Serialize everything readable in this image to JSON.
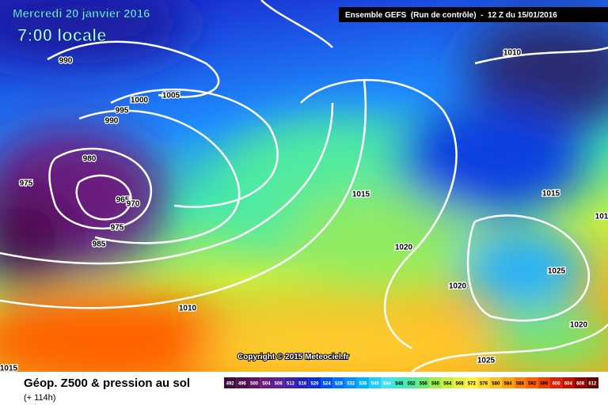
{
  "header": {
    "date": "Mercredi 20 janvier 2016",
    "time": "7:00 locale",
    "run": "Ensemble GEFS  (Run de contrôle)  -  12 Z du 15/01/2016"
  },
  "map": {
    "isobar_labels": [
      990,
      1005,
      1000,
      995,
      990,
      980,
      975,
      965,
      970,
      975,
      985,
      1010,
      1015,
      1020,
      1020,
      1025,
      1020,
      1025,
      1015,
      1010,
      101,
      1015
    ],
    "copyright": "Copyright © 2015 Meteociel.fr"
  },
  "footer": {
    "title": "Géop. Z500 & pression au sol",
    "lead": "(+ 114h)"
  },
  "legend": {
    "values": [
      492,
      496,
      500,
      504,
      508,
      512,
      516,
      520,
      524,
      528,
      532,
      536,
      540,
      544,
      548,
      552,
      556,
      560,
      564,
      568,
      572,
      576,
      580,
      584,
      588,
      592,
      596,
      600,
      604,
      608,
      612
    ],
    "colors": [
      "#3a0d3a",
      "#4d0f4d",
      "#5e1466",
      "#6a1b80",
      "#5a1f96",
      "#3a1fa8",
      "#2020c0",
      "#0a2fd8",
      "#0050f0",
      "#0070ff",
      "#0090ff",
      "#00b0ff",
      "#20ccff",
      "#40e0f0",
      "#40e8c0",
      "#50eaa0",
      "#70ea70",
      "#a0ea50",
      "#c8ee40",
      "#e8f040",
      "#fff040",
      "#ffd830",
      "#ffc020",
      "#ffa010",
      "#ff8008",
      "#ff6000",
      "#f04000",
      "#e02000",
      "#c01000",
      "#900000",
      "#600000"
    ]
  }
}
